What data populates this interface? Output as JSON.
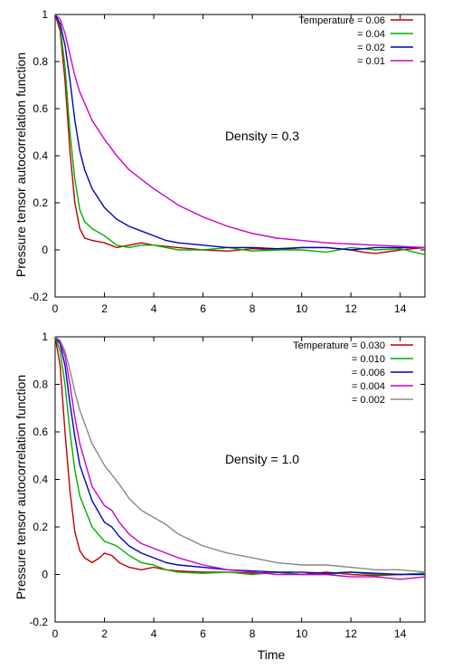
{
  "figure": {
    "shared_ylabel": "Pressure tensor autocorrelation function",
    "shared_xlabel": "Time"
  },
  "chart_data": [
    {
      "type": "line",
      "title": "",
      "annotation": "Density = 0.3",
      "xlabel": "",
      "ylabel": "Pressure tensor autocorrelation function",
      "xlim": [
        0,
        15
      ],
      "ylim": [
        -0.2,
        1.0
      ],
      "xticks": [
        0,
        2,
        4,
        6,
        8,
        10,
        12,
        14
      ],
      "yticks": [
        -0.2,
        0,
        0.2,
        0.4,
        0.6,
        0.8,
        1
      ],
      "xtick_labels": [
        "0",
        "2",
        "4",
        "6",
        "8",
        "10",
        "12",
        "14"
      ],
      "ytick_labels": [
        "-0.2",
        "0",
        "0.2",
        "0.4",
        "0.6",
        "0.8",
        "1"
      ],
      "grid": false,
      "legend_position": "top-right",
      "series": [
        {
          "name": "Temperature = 0.06",
          "color": "#c00000",
          "x": [
            0,
            0.2,
            0.4,
            0.6,
            0.8,
            1,
            1.2,
            1.5,
            2,
            2.5,
            3,
            3.5,
            4,
            5,
            6,
            7,
            8,
            9,
            10,
            11,
            12,
            12.5,
            13,
            14,
            15
          ],
          "y": [
            1,
            0.93,
            0.72,
            0.42,
            0.2,
            0.09,
            0.05,
            0.04,
            0.03,
            0.01,
            0.02,
            0.03,
            0.02,
            0.01,
            0.0,
            -0.005,
            0.005,
            0.0,
            0.01,
            0.01,
            0.0,
            -0.01,
            -0.015,
            0.0,
            0.01
          ]
        },
        {
          "name": "= 0.04",
          "color": "#00b000",
          "x": [
            0,
            0.2,
            0.4,
            0.6,
            0.8,
            1,
            1.2,
            1.5,
            2,
            2.5,
            3,
            3.5,
            4,
            5,
            6,
            7,
            8,
            9,
            10,
            11,
            12,
            13,
            14,
            15
          ],
          "y": [
            1,
            0.95,
            0.78,
            0.5,
            0.3,
            0.17,
            0.12,
            0.09,
            0.06,
            0.02,
            0.01,
            0.02,
            0.02,
            0.0,
            0.0,
            0.01,
            -0.005,
            0.0,
            0.0,
            -0.01,
            0.01,
            0.0,
            0.005,
            -0.02
          ]
        },
        {
          "name": "= 0.02",
          "color": "#0000c0",
          "x": [
            0,
            0.2,
            0.4,
            0.6,
            0.8,
            1,
            1.2,
            1.5,
            2,
            2.5,
            3,
            3.5,
            4,
            4.5,
            5,
            6,
            7,
            8,
            9,
            10,
            11,
            12,
            13,
            14,
            15
          ],
          "y": [
            1,
            0.96,
            0.87,
            0.72,
            0.55,
            0.42,
            0.34,
            0.26,
            0.18,
            0.13,
            0.1,
            0.08,
            0.06,
            0.04,
            0.03,
            0.02,
            0.01,
            0.01,
            0.005,
            0.01,
            0.01,
            0.0,
            0.01,
            0.01,
            0.01
          ]
        },
        {
          "name": "= 0.01",
          "color": "#cc00cc",
          "x": [
            0,
            0.2,
            0.4,
            0.6,
            0.8,
            1,
            1.5,
            2,
            2.5,
            3,
            3.5,
            4,
            5,
            6,
            7,
            8,
            9,
            10,
            11,
            12,
            13,
            14,
            15
          ],
          "y": [
            1,
            0.98,
            0.92,
            0.83,
            0.74,
            0.67,
            0.55,
            0.47,
            0.4,
            0.34,
            0.3,
            0.26,
            0.19,
            0.14,
            0.1,
            0.07,
            0.05,
            0.04,
            0.03,
            0.025,
            0.02,
            0.015,
            0.01
          ]
        }
      ]
    },
    {
      "type": "line",
      "title": "",
      "annotation": "Density = 1.0",
      "xlabel": "Time",
      "ylabel": "Pressure tensor autocorrelation function",
      "xlim": [
        0,
        15
      ],
      "ylim": [
        -0.2,
        1.0
      ],
      "xticks": [
        0,
        2,
        4,
        6,
        8,
        10,
        12,
        14
      ],
      "yticks": [
        -0.2,
        0,
        0.2,
        0.4,
        0.6,
        0.8,
        1
      ],
      "xtick_labels": [
        "0",
        "2",
        "4",
        "6",
        "8",
        "10",
        "12",
        "14"
      ],
      "ytick_labels": [
        "-0.2",
        "0",
        "0.2",
        "0.4",
        "0.6",
        "0.8",
        "1"
      ],
      "grid": false,
      "legend_position": "top-right",
      "series": [
        {
          "name": "Temperature = 0.030",
          "color": "#c00000",
          "x": [
            0,
            0.2,
            0.4,
            0.6,
            0.8,
            1,
            1.2,
            1.5,
            1.8,
            2.0,
            2.3,
            2.6,
            3,
            3.5,
            4,
            4.5,
            5,
            6,
            7,
            8,
            9,
            10,
            11,
            12,
            13,
            14,
            15
          ],
          "y": [
            1,
            0.88,
            0.6,
            0.35,
            0.18,
            0.1,
            0.07,
            0.05,
            0.07,
            0.09,
            0.08,
            0.05,
            0.03,
            0.02,
            0.03,
            0.02,
            0.015,
            0.01,
            0.01,
            0.005,
            0.01,
            0.0,
            0.01,
            0.0,
            -0.005,
            0.0,
            0.005
          ]
        },
        {
          "name": "= 0.010",
          "color": "#00b000",
          "x": [
            0,
            0.2,
            0.4,
            0.6,
            0.8,
            1,
            1.5,
            2,
            2.5,
            3,
            3.5,
            4,
            4.5,
            5,
            6,
            7,
            8,
            9,
            10,
            11,
            12,
            13,
            14,
            15
          ],
          "y": [
            1,
            0.94,
            0.8,
            0.6,
            0.44,
            0.33,
            0.2,
            0.14,
            0.12,
            0.08,
            0.05,
            0.04,
            0.02,
            0.01,
            0.005,
            0.01,
            0.0,
            0.01,
            0.0,
            0.0,
            0.01,
            0.0,
            0.0,
            0.005
          ]
        },
        {
          "name": "= 0.006",
          "color": "#0000c0",
          "x": [
            0,
            0.2,
            0.4,
            0.6,
            0.8,
            1,
            1.5,
            2,
            2.3,
            2.6,
            3,
            3.5,
            4,
            4.5,
            5,
            6,
            7,
            8,
            9,
            10,
            11,
            12,
            13,
            14,
            15
          ],
          "y": [
            1,
            0.97,
            0.88,
            0.72,
            0.58,
            0.46,
            0.31,
            0.22,
            0.2,
            0.16,
            0.12,
            0.09,
            0.07,
            0.05,
            0.04,
            0.03,
            0.02,
            0.015,
            0.01,
            0.01,
            0.005,
            0.01,
            0.005,
            0.0,
            0.0
          ]
        },
        {
          "name": "= 0.004",
          "color": "#cc00cc",
          "x": [
            0,
            0.2,
            0.4,
            0.6,
            0.8,
            1,
            1.5,
            2,
            2.3,
            2.6,
            3,
            3.5,
            4,
            4.5,
            5,
            6,
            7,
            8,
            9,
            10,
            11,
            12,
            13,
            14,
            15
          ],
          "y": [
            1,
            0.98,
            0.92,
            0.8,
            0.66,
            0.55,
            0.37,
            0.29,
            0.27,
            0.22,
            0.17,
            0.13,
            0.11,
            0.09,
            0.07,
            0.04,
            0.02,
            0.01,
            0.0,
            0.0,
            0.0,
            -0.01,
            -0.01,
            -0.02,
            -0.01
          ]
        },
        {
          "name": "= 0.002",
          "color": "#888888",
          "x": [
            0,
            0.2,
            0.4,
            0.6,
            0.8,
            1,
            1.5,
            2,
            2.3,
            2.6,
            3,
            3.5,
            4,
            4.5,
            5,
            6,
            7,
            8,
            9,
            10,
            11,
            12,
            13,
            14,
            15
          ],
          "y": [
            1,
            0.985,
            0.94,
            0.86,
            0.77,
            0.69,
            0.55,
            0.46,
            0.42,
            0.38,
            0.32,
            0.27,
            0.24,
            0.21,
            0.17,
            0.12,
            0.09,
            0.07,
            0.05,
            0.04,
            0.04,
            0.03,
            0.02,
            0.02,
            0.01
          ]
        }
      ]
    }
  ]
}
